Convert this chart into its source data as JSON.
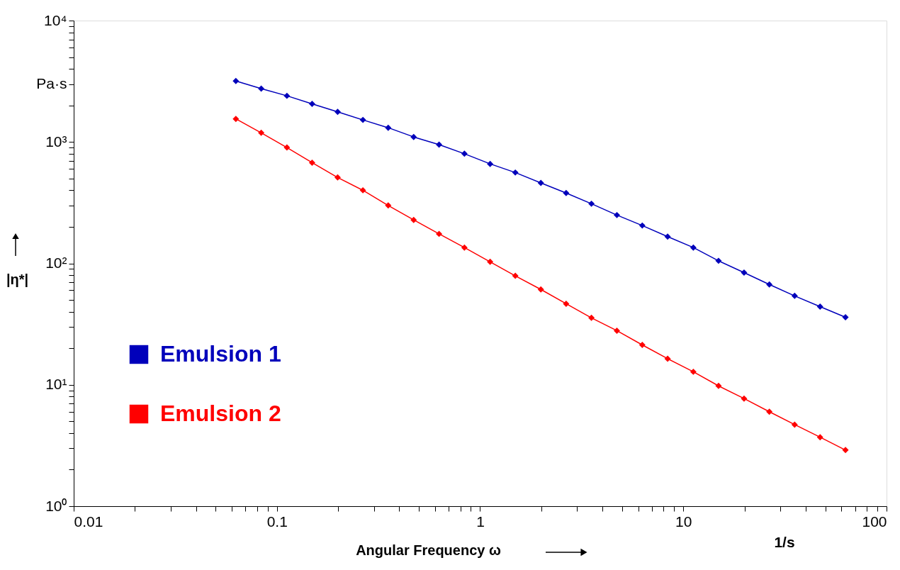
{
  "chart_data": {
    "type": "line",
    "xlabel": "Angular Frequency ω",
    "ylabel": "|η*|",
    "annotations": [
      "1/s"
    ],
    "x": [
      0.0628,
      0.0837,
      0.112,
      0.149,
      0.199,
      0.265,
      0.353,
      0.471,
      0.628,
      0.837,
      1.12,
      1.49,
      1.99,
      2.65,
      3.53,
      4.71,
      6.28,
      8.37,
      11.2,
      14.9,
      19.9,
      26.5,
      35.3,
      47.1,
      62.8
    ],
    "series": [
      {
        "name": "Emulsion 1",
        "color": "#0000bb",
        "values": [
          3180,
          2750,
          2400,
          2060,
          1770,
          1520,
          1310,
          1100,
          950,
          800,
          660,
          560,
          460,
          380,
          310,
          250,
          205,
          166,
          135,
          105,
          84,
          67,
          54,
          44,
          36
        ]
      },
      {
        "name": "Emulsion 2",
        "color": "#ff0000",
        "values": [
          1550,
          1190,
          900,
          675,
          510,
          400,
          300,
          228,
          175,
          135,
          103,
          79,
          61,
          46.5,
          35.6,
          27.9,
          21.3,
          16.4,
          12.8,
          9.8,
          7.7,
          6.0,
          4.7,
          3.7,
          2.9
        ]
      }
    ],
    "log": "xy",
    "xlim": [
      0.01,
      100
    ],
    "ylim": [
      1,
      10000
    ],
    "xticks": [
      0.01,
      {
        "value": 0.02,
        "label": null
      },
      {
        "value": 0.03,
        "label": null
      },
      {
        "value": 0.04,
        "label": null
      },
      {
        "value": 0.05,
        "label": null
      },
      {
        "value": 0.06,
        "label": null
      },
      {
        "value": 0.07,
        "label": null
      },
      {
        "value": 0.08,
        "label": null
      },
      {
        "value": 0.09,
        "label": null
      },
      0.1,
      {
        "value": 0.2,
        "label": null
      },
      {
        "value": 0.3,
        "label": null
      },
      {
        "value": 0.4,
        "label": null
      },
      {
        "value": 0.5,
        "label": null
      },
      {
        "value": 0.6,
        "label": null
      },
      {
        "value": 0.7,
        "label": null
      },
      {
        "value": 0.8,
        "label": null
      },
      {
        "value": 0.9,
        "label": null
      },
      1,
      {
        "value": 2,
        "label": null
      },
      {
        "value": 3,
        "label": null
      },
      {
        "value": 4,
        "label": null
      },
      {
        "value": 5,
        "label": null
      },
      {
        "value": 6,
        "label": null
      },
      {
        "value": 7,
        "label": null
      },
      {
        "value": 8,
        "label": null
      },
      {
        "value": 9,
        "label": null
      },
      10,
      {
        "value": 20,
        "label": null
      },
      {
        "value": 30,
        "label": null
      },
      {
        "value": 40,
        "label": null
      },
      {
        "value": 50,
        "label": null
      },
      {
        "value": 60,
        "label": null
      },
      {
        "value": 70,
        "label": null
      },
      {
        "value": 80,
        "label": null
      },
      {
        "value": 90,
        "label": null
      },
      100
    ],
    "yticks": [
      {
        "value": 1,
        "label": "10⁰"
      },
      {
        "value": 2,
        "label": null
      },
      {
        "value": 3,
        "label": null
      },
      {
        "value": 4,
        "label": null
      },
      {
        "value": 5,
        "label": null
      },
      {
        "value": 6,
        "label": null
      },
      {
        "value": 7,
        "label": null
      },
      {
        "value": 8,
        "label": null
      },
      {
        "value": 9,
        "label": null
      },
      {
        "value": 10,
        "label": "10¹"
      },
      {
        "value": 20,
        "label": null
      },
      {
        "value": 30,
        "label": null
      },
      {
        "value": 40,
        "label": null
      },
      {
        "value": 50,
        "label": null
      },
      {
        "value": 60,
        "label": null
      },
      {
        "value": 70,
        "label": null
      },
      {
        "value": 80,
        "label": null
      },
      {
        "value": 90,
        "label": null
      },
      {
        "value": 100,
        "label": "10²"
      },
      {
        "value": 200,
        "label": null
      },
      {
        "value": 300,
        "label": null
      },
      {
        "value": 400,
        "label": null
      },
      {
        "value": 500,
        "label": null
      },
      {
        "value": 600,
        "label": null
      },
      {
        "value": 700,
        "label": null
      },
      {
        "value": 800,
        "label": null
      },
      {
        "value": 900,
        "label": null
      },
      {
        "value": 1000,
        "label": "10³"
      },
      {
        "value": 2000,
        "label": null
      },
      {
        "value": 3000,
        "label": "Pa·s"
      },
      {
        "value": 4000,
        "label": null
      },
      {
        "value": 5000,
        "label": null
      },
      {
        "value": 6000,
        "label": null
      },
      {
        "value": 7000,
        "label": null
      },
      {
        "value": 8000,
        "label": null
      },
      {
        "value": 9000,
        "label": null
      },
      {
        "value": 10000,
        "label": "10⁴"
      }
    ],
    "marker": "diamond",
    "line_style": "solid",
    "grid": false,
    "legend": "bottom left"
  }
}
